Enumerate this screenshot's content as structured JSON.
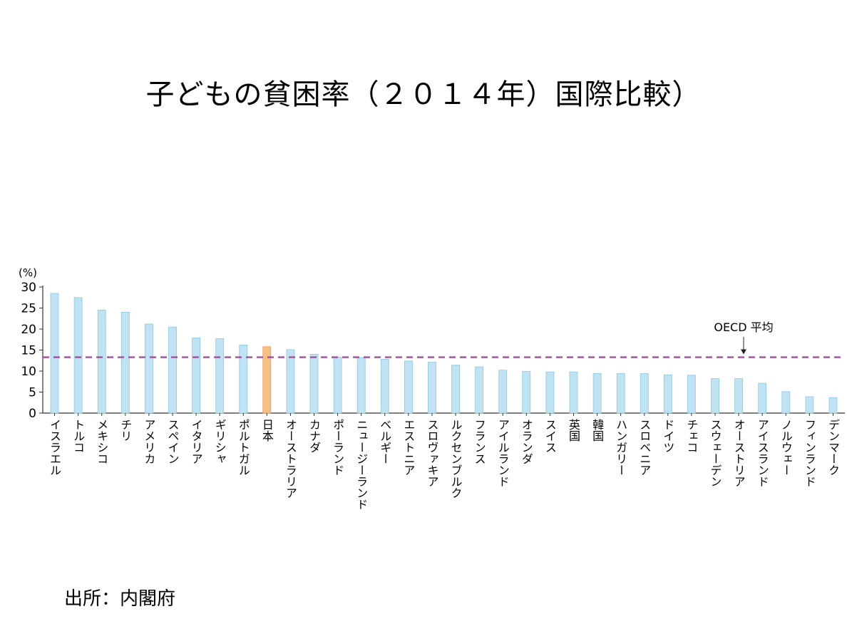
{
  "title": "子どもの貧困率（２０１４年）国際比較）",
  "source": "出所：内閣府",
  "chart_data": {
    "type": "bar",
    "ylabel": "(%)",
    "ylim": [
      0,
      30
    ],
    "yticks": [
      0,
      5,
      10,
      15,
      20,
      25,
      30
    ],
    "categories": [
      "イスラエル",
      "トルコ",
      "メキシコ",
      "チリ",
      "アメリカ",
      "スペイン",
      "イタリア",
      "ギリシャ",
      "ポルトガル",
      "日本",
      "オーストラリア",
      "カナダ",
      "ポーランド",
      "ニュージーランド",
      "ベルギー",
      "エストニア",
      "スロヴァキア",
      "ルクセンブルク",
      "フランス",
      "アイルランド",
      "オランダ",
      "スイス",
      "英国",
      "韓国",
      "ハンガリー",
      "スロベニア",
      "ドイツ",
      "チェコ",
      "スウェーデン",
      "オーストリア",
      "アイスランド",
      "ノルウェー",
      "フィンランド",
      "デンマーク"
    ],
    "values": [
      28.5,
      27.5,
      24.5,
      24.0,
      21.2,
      20.5,
      17.9,
      17.7,
      16.2,
      15.8,
      15.1,
      14.0,
      13.3,
      13.2,
      12.8,
      12.4,
      12.1,
      11.4,
      11.0,
      10.2,
      9.9,
      9.8,
      9.8,
      9.4,
      9.4,
      9.4,
      9.1,
      9.0,
      8.2,
      8.2,
      7.1,
      5.1,
      3.9,
      3.7
    ],
    "highlight": "日本",
    "average_line": {
      "label": "OECD 平均",
      "value": 13.3
    },
    "colors": {
      "bar": "#bfe3f2",
      "bar_edge": "#8fc6dc",
      "highlight": "#f6bf86",
      "highlight_edge": "#e69a4f",
      "average": "#a0509c",
      "axis": "#333333"
    }
  }
}
